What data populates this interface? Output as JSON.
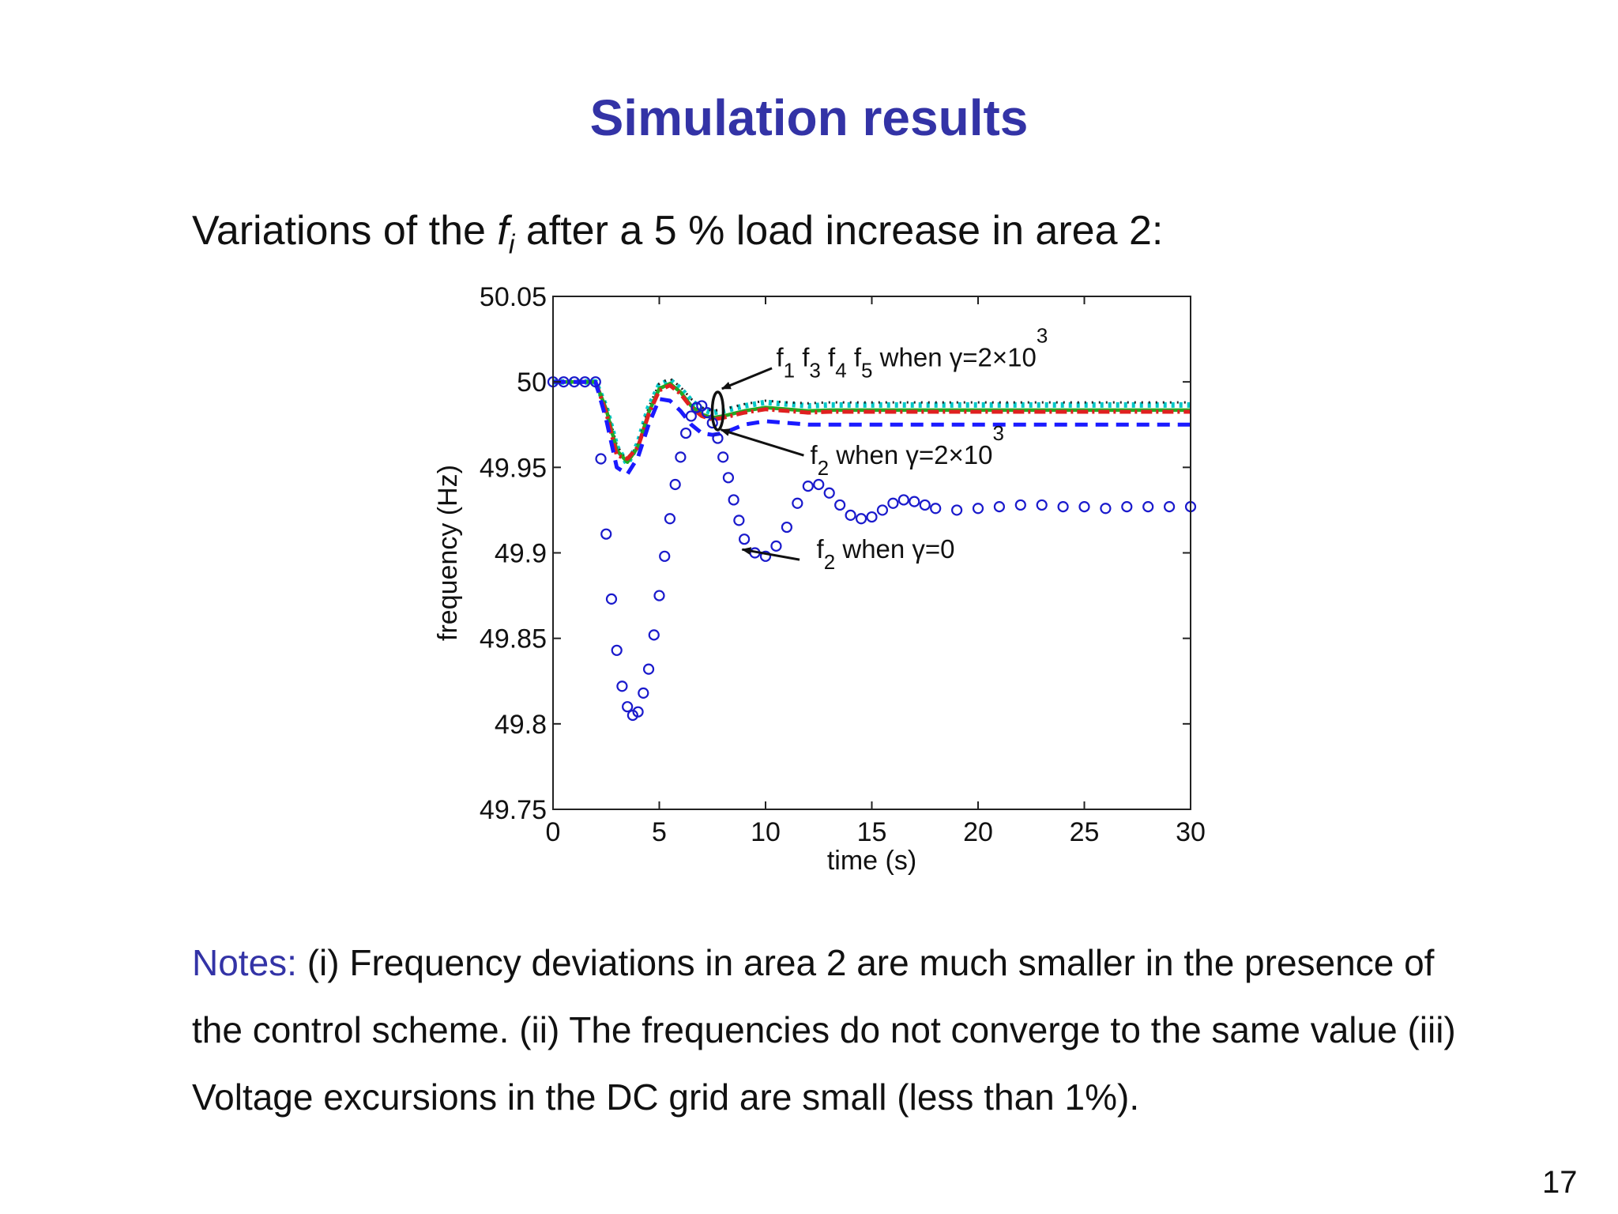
{
  "slide": {
    "title": "Simulation results",
    "intro_before": "Variations of the ",
    "intro_var": "f",
    "intro_sub": "i",
    "intro_after": " after a 5 % load increase in area 2:",
    "notes_label": "Notes:",
    "notes_text": " (i) Frequency deviations in area 2 are much smaller in the presence of the control scheme. (ii) The frequencies do not converge to the same value (iii) Voltage excursions in the DC grid are small (less than 1%).",
    "page_number": "17"
  },
  "chart_data": {
    "type": "line",
    "xlabel": "time (s)",
    "ylabel": "frequency (Hz)",
    "xlim": [
      0,
      30
    ],
    "ylim": [
      49.75,
      50.05
    ],
    "xticks": [
      "0",
      "5",
      "10",
      "15",
      "20",
      "25",
      "30"
    ],
    "yticks": [
      "49.75",
      "49.8",
      "49.85",
      "49.9",
      "49.95",
      "50",
      "50.05"
    ],
    "grid": false,
    "annotations": [
      {
        "label": "f1 f3 f4 f5 when γ=2×10^3",
        "parts": [
          "f",
          "1",
          " f",
          "3",
          " f",
          "4",
          " f",
          "5",
          " when γ=2×10",
          "3"
        ],
        "x": 10.5,
        "y": 50.009
      },
      {
        "label": "f2 when γ=2×10^3",
        "parts": [
          "f",
          "2",
          " when γ=2×10",
          "3"
        ],
        "x": 12.1,
        "y": 49.952
      },
      {
        "label": "f2 when γ=0",
        "parts": [
          "f",
          "2",
          " when γ=0"
        ],
        "x": 12.4,
        "y": 49.897
      }
    ],
    "series": [
      {
        "style": "cyan-dotted",
        "color": "#00c8c8",
        "x": [
          0,
          1,
          2,
          2.5,
          3,
          3.5,
          4,
          4.5,
          5,
          5.5,
          6,
          6.5,
          7,
          7.5,
          8,
          9,
          10,
          11,
          12,
          13,
          14,
          15,
          17,
          20,
          25,
          30
        ],
        "y": [
          50.0,
          50.0,
          50.0,
          49.985,
          49.962,
          49.952,
          49.964,
          49.985,
          49.998,
          50.001,
          49.996,
          49.989,
          49.984,
          49.982,
          49.983,
          49.986,
          49.988,
          49.987,
          49.986,
          49.9865,
          49.9865,
          49.9865,
          49.9865,
          49.9865,
          49.9865,
          49.9865
        ]
      },
      {
        "style": "black-dotted",
        "color": "#222222",
        "x": [
          0,
          1,
          2,
          2.5,
          3,
          3.5,
          4,
          4.5,
          5,
          5.5,
          6,
          6.5,
          7,
          7.5,
          8,
          9,
          10,
          11,
          12,
          13,
          14,
          15,
          17,
          20,
          25,
          30
        ],
        "y": [
          50.0,
          50.0,
          50.0,
          49.986,
          49.963,
          49.953,
          49.964,
          49.985,
          49.999,
          50.002,
          49.997,
          49.99,
          49.985,
          49.983,
          49.984,
          49.987,
          49.989,
          49.988,
          49.9875,
          49.988,
          49.988,
          49.988,
          49.988,
          49.988,
          49.988,
          49.988
        ]
      },
      {
        "style": "green-solid",
        "color": "#22aa22",
        "x": [
          0,
          1,
          2,
          2.5,
          3,
          3.5,
          4,
          4.5,
          5,
          5.5,
          6,
          6.5,
          7,
          7.5,
          8,
          9,
          10,
          11,
          12,
          13,
          14,
          15,
          17,
          20,
          25,
          30
        ],
        "y": [
          50.0,
          50.0,
          50.0,
          49.984,
          49.96,
          49.953,
          49.962,
          49.982,
          49.996,
          49.999,
          49.994,
          49.986,
          49.981,
          49.979,
          49.98,
          49.983,
          49.985,
          49.984,
          49.983,
          49.9835,
          49.9835,
          49.9835,
          49.9835,
          49.9835,
          49.9835,
          49.9835
        ]
      },
      {
        "style": "red-dashdot",
        "color": "#e02020",
        "x": [
          0,
          1,
          2,
          2.5,
          3,
          3.5,
          4,
          4.5,
          5,
          5.5,
          6,
          6.5,
          7,
          7.5,
          8,
          9,
          10,
          11,
          12,
          13,
          14,
          15,
          17,
          20,
          25,
          30
        ],
        "y": [
          50.0,
          50.0,
          50.0,
          49.982,
          49.957,
          49.955,
          49.962,
          49.981,
          49.995,
          49.998,
          49.993,
          49.985,
          49.98,
          49.978,
          49.979,
          49.982,
          49.984,
          49.983,
          49.982,
          49.9825,
          49.9825,
          49.9825,
          49.9825,
          49.9825,
          49.9825,
          49.9825
        ]
      },
      {
        "style": "blue-dashed",
        "color": "#1a1aff",
        "x": [
          0,
          1,
          2,
          2.5,
          3,
          3.5,
          4,
          4.5,
          5,
          5.5,
          6,
          6.5,
          7,
          7.5,
          8,
          9,
          10,
          11,
          12,
          13,
          14,
          15,
          17,
          20,
          25,
          30
        ],
        "y": [
          50.0,
          50.0,
          50.0,
          49.978,
          49.95,
          49.946,
          49.956,
          49.975,
          49.99,
          49.989,
          49.983,
          49.975,
          49.97,
          49.969,
          49.97,
          49.975,
          49.977,
          49.976,
          49.975,
          49.975,
          49.975,
          49.975,
          49.975,
          49.975,
          49.975,
          49.975
        ]
      },
      {
        "style": "blue-circles",
        "color": "#1a1acc",
        "x": [
          0,
          0.5,
          1,
          1.5,
          2,
          2.25,
          2.5,
          2.75,
          3,
          3.25,
          3.5,
          3.75,
          4,
          4.25,
          4.5,
          4.75,
          5,
          5.25,
          5.5,
          5.75,
          6,
          6.25,
          6.5,
          6.75,
          7,
          7.25,
          7.5,
          7.75,
          8,
          8.25,
          8.5,
          8.75,
          9,
          9.5,
          10,
          10.5,
          11,
          11.5,
          12,
          12.5,
          13,
          13.5,
          14,
          14.5,
          15,
          15.5,
          16,
          16.5,
          17,
          17.5,
          18,
          19,
          20,
          21,
          22,
          23,
          24,
          25,
          26,
          27,
          28,
          29,
          30
        ],
        "y": [
          50.0,
          50.0,
          50.0,
          50.0,
          50.0,
          49.955,
          49.911,
          49.873,
          49.843,
          49.822,
          49.81,
          49.805,
          49.807,
          49.818,
          49.832,
          49.852,
          49.875,
          49.898,
          49.92,
          49.94,
          49.956,
          49.97,
          49.98,
          49.985,
          49.986,
          49.982,
          49.976,
          49.967,
          49.956,
          49.944,
          49.931,
          49.919,
          49.908,
          49.9,
          49.898,
          49.904,
          49.915,
          49.929,
          49.939,
          49.94,
          49.935,
          49.928,
          49.922,
          49.92,
          49.921,
          49.925,
          49.929,
          49.931,
          49.93,
          49.928,
          49.926,
          49.925,
          49.926,
          49.927,
          49.928,
          49.928,
          49.927,
          49.927,
          49.926,
          49.927,
          49.927,
          49.927,
          49.927
        ]
      }
    ]
  }
}
